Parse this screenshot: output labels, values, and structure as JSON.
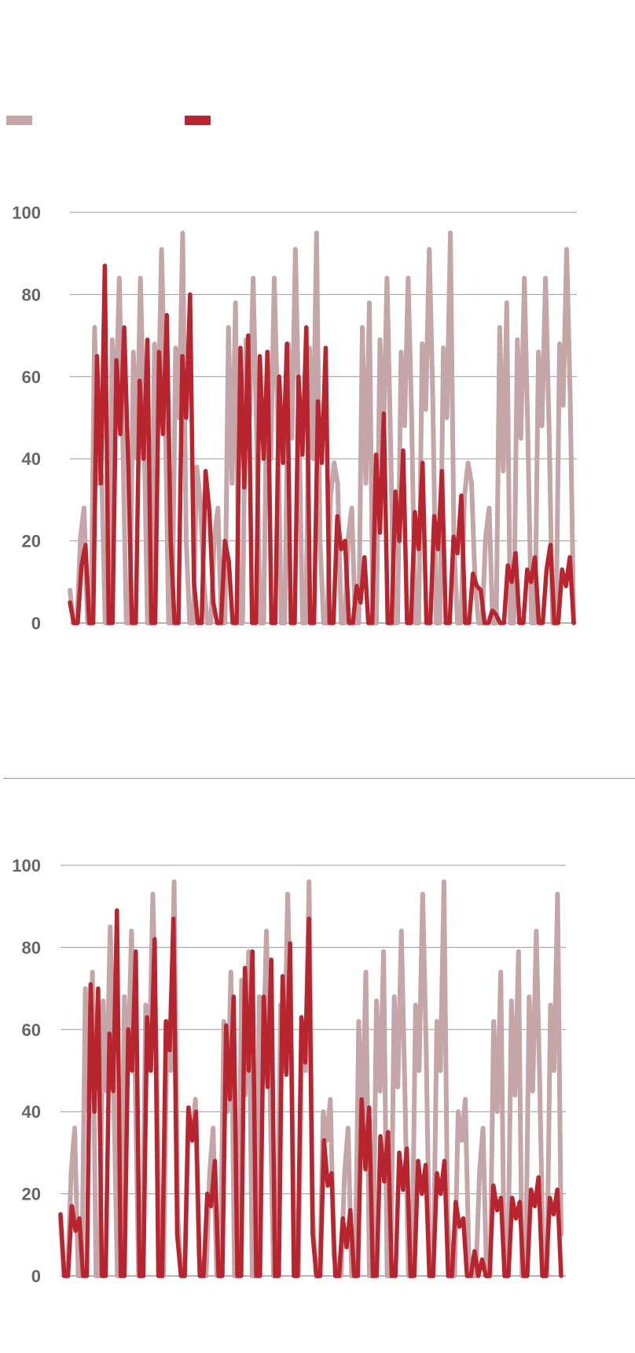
{
  "legend": {
    "items": [
      {
        "label": "",
        "color": "#c4a5a8"
      },
      {
        "label": "",
        "color": "#b8252f"
      }
    ]
  },
  "colors": {
    "series_light": "#c4a5a8",
    "series_dark": "#b8252f",
    "grid": "#9a9a9a",
    "tick_text": "#666666"
  },
  "chart_data": [
    {
      "type": "line",
      "ylim": [
        0,
        100
      ],
      "yticks": [
        "0",
        "20",
        "40",
        "60",
        "80",
        "100"
      ],
      "grid": true,
      "legend_position": "top-left",
      "series": [
        {
          "color": "#c4a5a8",
          "values": [
            8,
            0,
            0,
            21,
            28,
            0,
            0,
            72,
            34,
            36,
            0,
            0,
            69,
            50,
            84,
            45,
            0,
            0,
            66,
            40,
            84,
            50,
            0,
            0,
            68,
            48,
            91,
            55,
            0,
            0,
            67,
            50,
            95,
            20,
            0,
            0,
            38,
            30,
            10,
            0,
            0,
            21,
            28,
            0,
            0,
            72,
            34,
            78,
            0,
            0,
            69,
            50,
            84,
            45,
            0,
            0,
            66,
            40,
            84,
            50,
            0,
            0,
            68,
            45,
            91,
            50,
            0,
            0,
            67,
            40,
            95,
            20,
            0,
            0,
            31,
            39,
            34,
            0,
            0,
            21,
            28,
            0,
            0,
            72,
            34,
            78,
            0,
            0,
            69,
            45,
            84,
            45,
            0,
            0,
            66,
            48,
            84,
            50,
            0,
            0,
            68,
            52,
            91,
            55,
            0,
            0,
            67,
            50,
            95,
            20,
            0,
            0,
            31,
            39,
            34,
            10,
            0,
            0,
            21,
            28,
            0,
            0,
            72,
            37,
            78,
            0,
            0,
            69,
            45,
            84,
            45,
            0,
            0,
            66,
            48,
            84,
            48,
            0,
            0,
            68,
            53,
            91,
            55,
            0
          ]
        },
        {
          "color": "#b8252f",
          "values": [
            5,
            0,
            0,
            14,
            19,
            0,
            0,
            65,
            34,
            87,
            0,
            0,
            64,
            46,
            72,
            40,
            0,
            0,
            59,
            40,
            69,
            0,
            0,
            66,
            46,
            75,
            20,
            0,
            0,
            65,
            50,
            80,
            10,
            0,
            0,
            37,
            27,
            5,
            0,
            0,
            20,
            15,
            0,
            0,
            67,
            33,
            70,
            0,
            0,
            65,
            40,
            66,
            0,
            0,
            60,
            39,
            68,
            0,
            0,
            60,
            41,
            72,
            0,
            0,
            54,
            39,
            67,
            0,
            0,
            26,
            18,
            20,
            0,
            0,
            9,
            5,
            16,
            0,
            0,
            41,
            22,
            51,
            0,
            0,
            32,
            20,
            42,
            0,
            0,
            27,
            18,
            39,
            0,
            0,
            26,
            18,
            37,
            0,
            0,
            21,
            17,
            31,
            0,
            0,
            12,
            9,
            8,
            0,
            0,
            3,
            2,
            0,
            0,
            14,
            10,
            17,
            0,
            0,
            13,
            10,
            16,
            0,
            0,
            13,
            19,
            0,
            0,
            13,
            9,
            16,
            0
          ]
        }
      ]
    },
    {
      "type": "line",
      "ylim": [
        0,
        100
      ],
      "yticks": [
        "0",
        "20",
        "40",
        "60",
        "80",
        "100"
      ],
      "grid": true,
      "series": [
        {
          "color": "#c4a5a8",
          "values": [
            14,
            0,
            0,
            25,
            36,
            0,
            0,
            70,
            40,
            74,
            0,
            0,
            67,
            45,
            85,
            45,
            0,
            0,
            68,
            50,
            84,
            50,
            0,
            0,
            66,
            50,
            93,
            55,
            0,
            0,
            62,
            50,
            96,
            15,
            0,
            0,
            40,
            33,
            43,
            5,
            0,
            0,
            25,
            36,
            0,
            0,
            62,
            40,
            74,
            0,
            0,
            72,
            44,
            79,
            0,
            0,
            68,
            50,
            84,
            45,
            0,
            0,
            66,
            50,
            93,
            55,
            0,
            0,
            62,
            50,
            96,
            15,
            0,
            0,
            40,
            33,
            43,
            5,
            0,
            0,
            25,
            36,
            0,
            0,
            62,
            35,
            74,
            0,
            0,
            67,
            45,
            79,
            0,
            0,
            68,
            46,
            84,
            45,
            0,
            0,
            66,
            50,
            93,
            55,
            0,
            0,
            62,
            50,
            96,
            15,
            0,
            0,
            40,
            33,
            43,
            5,
            0,
            0,
            25,
            36,
            0,
            0,
            62,
            40,
            74,
            0,
            0,
            67,
            44,
            79,
            0,
            0,
            68,
            45,
            84,
            46,
            0,
            0,
            66,
            50,
            93,
            10
          ]
        },
        {
          "color": "#b8252f",
          "values": [
            15,
            0,
            0,
            17,
            11,
            14,
            0,
            0,
            71,
            40,
            70,
            0,
            0,
            59,
            45,
            89,
            0,
            0,
            60,
            50,
            79,
            0,
            0,
            63,
            50,
            82,
            0,
            0,
            62,
            55,
            87,
            10,
            0,
            0,
            41,
            33,
            40,
            0,
            0,
            20,
            17,
            28,
            0,
            0,
            61,
            43,
            68,
            0,
            0,
            75,
            50,
            79,
            0,
            0,
            68,
            46,
            77,
            0,
            0,
            73,
            49,
            81,
            0,
            0,
            63,
            52,
            87,
            10,
            0,
            0,
            33,
            22,
            25,
            0,
            0,
            14,
            7,
            16,
            0,
            0,
            43,
            26,
            41,
            0,
            0,
            34,
            23,
            35,
            0,
            0,
            30,
            21,
            31,
            0,
            0,
            28,
            20,
            27,
            0,
            0,
            25,
            20,
            28,
            0,
            0,
            18,
            12,
            14,
            0,
            0,
            6,
            0,
            4,
            0,
            0,
            22,
            16,
            19,
            0,
            0,
            19,
            14,
            18,
            0,
            0,
            21,
            17,
            24,
            0,
            0,
            19,
            15,
            21,
            0
          ]
        }
      ]
    }
  ]
}
